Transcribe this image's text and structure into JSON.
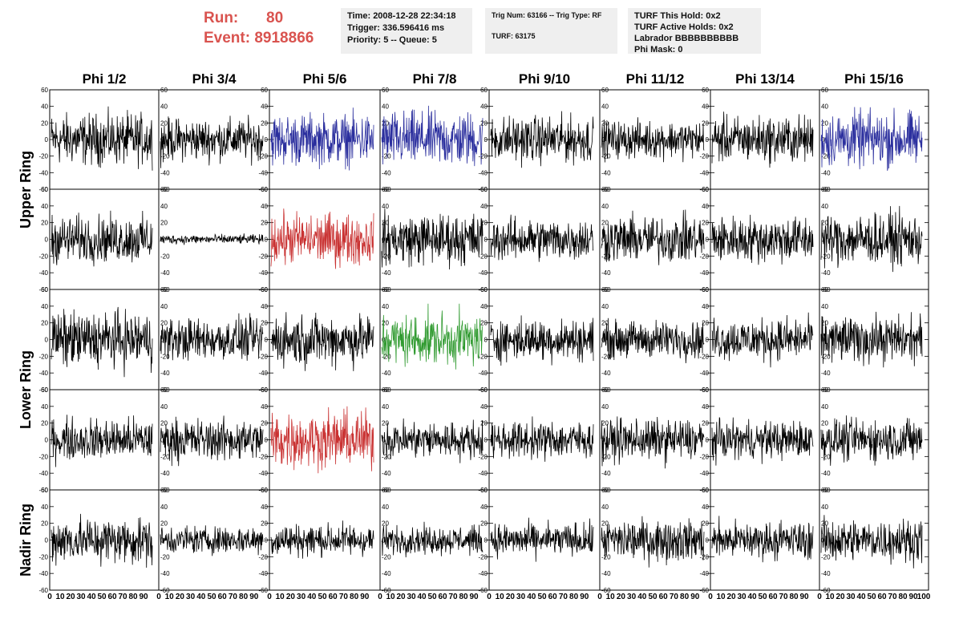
{
  "header": {
    "run_label": "Run:",
    "run_value": "80",
    "event_label": "Event:",
    "event_value": "8918866"
  },
  "info1": {
    "time": "Time: 2008-12-28 22:34:18",
    "trigger": "Trigger: 336.596416 ms",
    "priority": "Priority: 5 -- Queue: 5"
  },
  "info2": {
    "trig": "Trig Num: 63166 -- Trig Type: RF",
    "turf": "TURF: 63175"
  },
  "info3": {
    "hold": "TURF This Hold: 0x2",
    "active": "TURF Active Holds: 0x2",
    "labrador": "Labrador BBBBBBBBBB",
    "phimask": "Phi Mask: 0"
  },
  "colors": {
    "black": "#000000",
    "blue": "#2b2f9e",
    "red": "#c93232",
    "green": "#2f9a2f",
    "header_red": "#d9534f"
  },
  "chart_data": {
    "type": "line",
    "columns": [
      "Phi 1/2",
      "Phi 3/4",
      "Phi 5/6",
      "Phi 7/8",
      "Phi 9/10",
      "Phi 11/12",
      "Phi 13/14",
      "Phi 15/16"
    ],
    "rings": [
      {
        "label": "Upper Ring",
        "rows": [
          0,
          1
        ]
      },
      {
        "label": "Lower Ring",
        "rows": [
          2,
          3
        ]
      },
      {
        "label": "Nadir Ring",
        "rows": [
          4
        ]
      }
    ],
    "xlim": [
      0,
      100
    ],
    "ylim": [
      -60,
      60
    ],
    "y_ticks": [
      "60",
      "40",
      "20",
      "0",
      "-20",
      "-40",
      "-60"
    ],
    "x_tick_strings": [
      "0",
      "10",
      "20",
      "30",
      "40",
      "50",
      "60",
      "70",
      "80",
      "90",
      "100"
    ],
    "highlight": {
      "0": {
        "2": "blue",
        "3": "blue",
        "7": "blue"
      },
      "1": {
        "2": "red"
      },
      "2": {
        "3": "green"
      },
      "3": {
        "2": "red"
      }
    },
    "amplitude": {
      "0": [
        22,
        18,
        22,
        24,
        20,
        16,
        20,
        24
      ],
      "1": [
        20,
        4,
        22,
        22,
        18,
        20,
        20,
        22
      ],
      "2": [
        24,
        18,
        22,
        22,
        18,
        16,
        18,
        20
      ],
      "3": [
        18,
        18,
        24,
        16,
        16,
        18,
        16,
        18
      ],
      "4": [
        20,
        12,
        14,
        12,
        14,
        18,
        16,
        18
      ]
    }
  }
}
